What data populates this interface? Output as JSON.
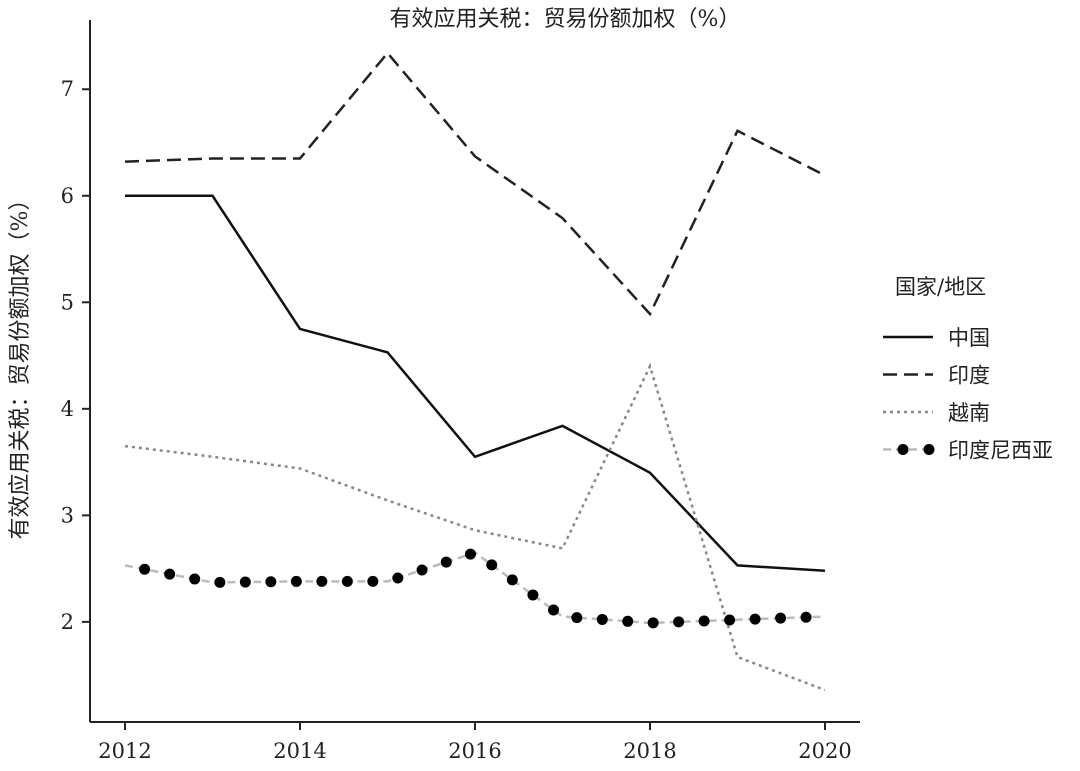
{
  "chart_data": {
    "type": "line",
    "title": "有效应用关税：贸易份额加权（%）",
    "xlabel": "",
    "ylabel": "有效应用关税：贸易份额加权（%）",
    "x": [
      2012,
      2013,
      2014,
      2015,
      2016,
      2017,
      2018,
      2019,
      2020
    ],
    "xlim": [
      2011.6,
      2020.4
    ],
    "ylim": [
      1.06,
      7.65
    ],
    "xticks": [
      2012,
      2014,
      2016,
      2018,
      2020
    ],
    "xtick_labels": [
      "2012",
      "2014",
      "2016",
      "2018",
      "2020"
    ],
    "yticks": [
      2,
      3,
      4,
      5,
      6,
      7
    ],
    "ytick_labels": [
      "2",
      "3",
      "4",
      "5",
      "6",
      "7"
    ],
    "grid": false,
    "legend": {
      "title": "国家/地区",
      "placement": "right"
    },
    "series": [
      {
        "name": "中国",
        "style": "solid",
        "values": [
          6.0,
          6.0,
          4.75,
          4.53,
          3.55,
          3.84,
          3.4,
          2.53,
          2.48
        ]
      },
      {
        "name": "印度",
        "style": "dashed",
        "values": [
          6.32,
          6.35,
          6.35,
          7.34,
          6.37,
          5.79,
          4.89,
          6.61,
          6.19
        ]
      },
      {
        "name": "越南",
        "style": "dotted",
        "values": [
          3.65,
          3.55,
          3.44,
          3.14,
          2.86,
          2.69,
          4.4,
          1.67,
          1.36
        ]
      },
      {
        "name": "印度尼西亚",
        "style": "dots",
        "values": [
          2.53,
          2.37,
          2.38,
          2.38,
          2.65,
          2.05,
          1.99,
          2.02,
          2.05
        ]
      }
    ]
  }
}
